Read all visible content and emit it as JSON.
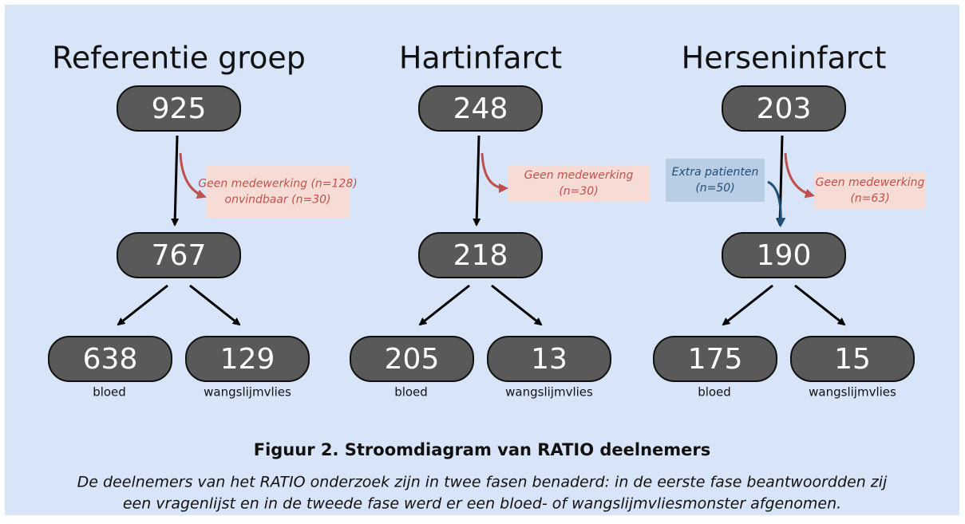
{
  "columns": [
    {
      "title": "Referentie groep",
      "top": "925",
      "exclusion": [
        "Geen medewerking (n=128)",
        "onvindbaar (n=30)"
      ],
      "middle": "767",
      "bottom": [
        {
          "value": "638",
          "label": "bloed"
        },
        {
          "value": "129",
          "label": "wangslijmvlies"
        }
      ]
    },
    {
      "title": "Hartinfarct",
      "top": "248",
      "exclusion": [
        "Geen medewerking",
        "(n=30)"
      ],
      "middle": "218",
      "bottom": [
        {
          "value": "205",
          "label": "bloed"
        },
        {
          "value": "13",
          "label": "wangslijmvlies"
        }
      ]
    },
    {
      "title": "Herseninfarct",
      "top": "203",
      "extra": [
        "Extra patienten",
        "(n=50)"
      ],
      "exclusion": [
        "Geen medewerking",
        "(n=63)"
      ],
      "middle": "190",
      "bottom": [
        {
          "value": "175",
          "label": "bloed"
        },
        {
          "value": "15",
          "label": "wangslijmvlies"
        }
      ]
    }
  ],
  "caption": {
    "title": "Figuur 2. Stroomdiagram van RATIO deelnemers",
    "lines": [
      "De deelnemers van het  RATIO onderzoek zijn in twee fasen benaderd: in de eerste fase beantwoordden zij",
      "een vragenlijst en in de tweede fase werd er een bloed- of wangslijmvliesmonster afgenomen."
    ]
  }
}
